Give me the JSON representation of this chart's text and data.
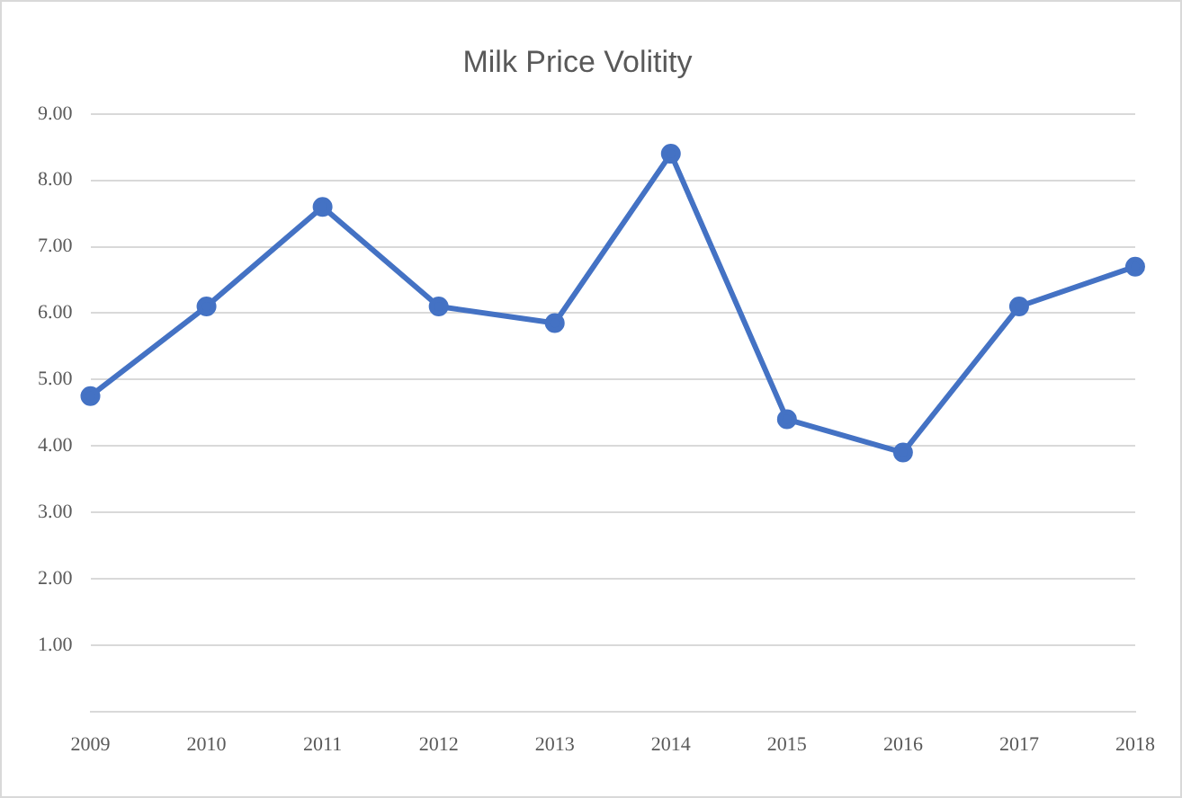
{
  "chart_data": {
    "type": "line",
    "title": "Milk Price Volitity",
    "categories": [
      "2009",
      "2010",
      "2011",
      "2012",
      "2013",
      "2014",
      "2015",
      "2016",
      "2017",
      "2018"
    ],
    "series": [
      {
        "color": "#4472c4",
        "values": [
          4.75,
          6.1,
          7.6,
          6.1,
          5.85,
          8.4,
          4.4,
          3.9,
          6.1,
          6.7
        ]
      }
    ],
    "ylim": [
      0,
      9
    ],
    "yticks": [
      {
        "value": 0,
        "label": null
      },
      {
        "value": 1,
        "label": "1.00"
      },
      {
        "value": 2,
        "label": "2.00"
      },
      {
        "value": 3,
        "label": "3.00"
      },
      {
        "value": 4,
        "label": "4.00"
      },
      {
        "value": 5,
        "label": "5.00"
      },
      {
        "value": 6,
        "label": "6.00"
      },
      {
        "value": 7,
        "label": "7.00"
      },
      {
        "value": 8,
        "label": "8.00"
      },
      {
        "value": 9,
        "label": "9.00"
      }
    ],
    "grid": "y",
    "marker": "circle",
    "line_style": "solid"
  }
}
